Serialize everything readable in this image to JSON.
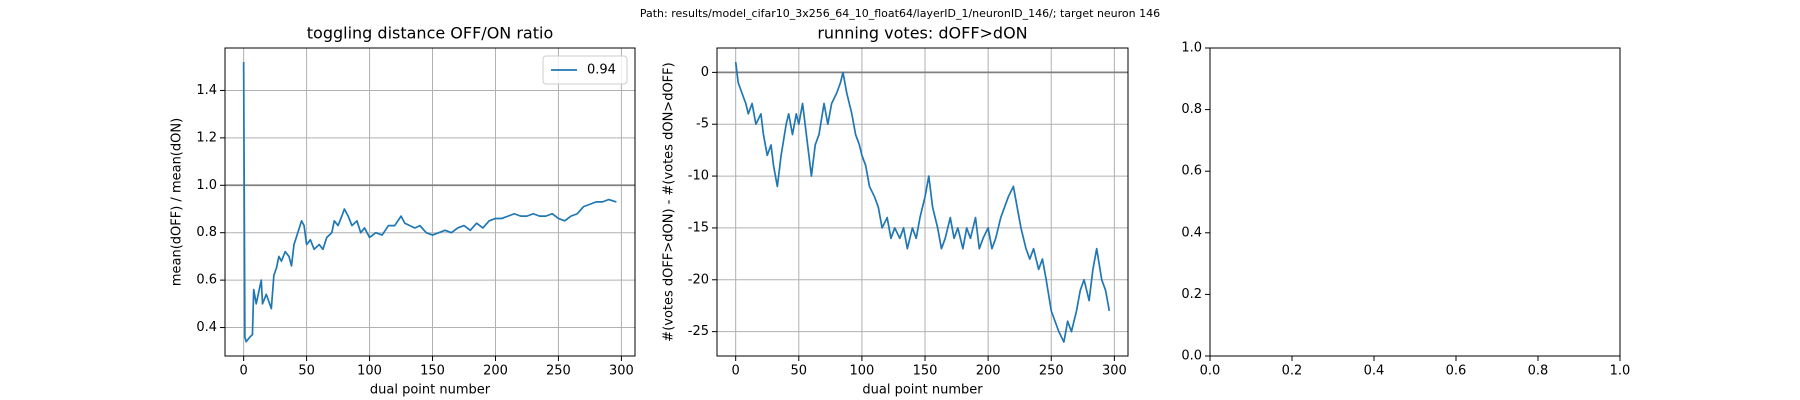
{
  "title": "Path: results/model_cifar10_3x256_64_10_float64/layerID_1/neuronID_146/; target neuron 146",
  "chart_data": [
    {
      "type": "line",
      "title": "toggling distance OFF/ON ratio",
      "xlabel": "dual point number",
      "ylabel": "mean(dOFF) / mean(dON)",
      "x": [
        0,
        1,
        2,
        5,
        7,
        8,
        10,
        12,
        14,
        15,
        18,
        22,
        24,
        26,
        28,
        30,
        33,
        36,
        38,
        40,
        43,
        46,
        48,
        50,
        53,
        56,
        60,
        63,
        66,
        70,
        72,
        75,
        78,
        80,
        83,
        86,
        90,
        93,
        96,
        100,
        105,
        110,
        115,
        120,
        125,
        128,
        132,
        136,
        140,
        145,
        150,
        155,
        160,
        165,
        170,
        175,
        180,
        185,
        190,
        195,
        200,
        205,
        210,
        215,
        220,
        225,
        230,
        235,
        240,
        245,
        250,
        255,
        260,
        265,
        270,
        275,
        280,
        285,
        290,
        296
      ],
      "series": [
        {
          "name": "0.94",
          "color": "#1f77b4",
          "values": [
            1.52,
            0.36,
            0.34,
            0.36,
            0.37,
            0.56,
            0.5,
            0.55,
            0.6,
            0.5,
            0.54,
            0.48,
            0.62,
            0.65,
            0.7,
            0.68,
            0.72,
            0.7,
            0.66,
            0.75,
            0.8,
            0.85,
            0.83,
            0.75,
            0.77,
            0.73,
            0.75,
            0.73,
            0.78,
            0.8,
            0.85,
            0.83,
            0.87,
            0.9,
            0.87,
            0.83,
            0.85,
            0.8,
            0.82,
            0.78,
            0.8,
            0.79,
            0.83,
            0.83,
            0.87,
            0.84,
            0.83,
            0.82,
            0.83,
            0.8,
            0.79,
            0.8,
            0.81,
            0.8,
            0.82,
            0.83,
            0.81,
            0.84,
            0.82,
            0.85,
            0.86,
            0.86,
            0.87,
            0.88,
            0.87,
            0.87,
            0.88,
            0.87,
            0.87,
            0.88,
            0.86,
            0.85,
            0.87,
            0.88,
            0.91,
            0.92,
            0.93,
            0.93,
            0.94,
            0.93
          ]
        }
      ],
      "hline": 1,
      "hline_color": "#808080",
      "xlim": [
        -14.8,
        310.8
      ],
      "xticks": [
        0,
        50,
        100,
        150,
        200,
        250,
        300
      ],
      "ylim": [
        0.28,
        1.579
      ],
      "yticks": [
        0.4,
        0.6,
        0.8,
        {
          "value": 1.0,
          "label": "1.0"
        },
        1.2,
        1.4
      ],
      "grid": true,
      "legend": "upper right"
    },
    {
      "type": "line",
      "title": "running votes: dOFF>dON",
      "xlabel": "dual point number",
      "ylabel": "#(votes dOFF>dON) - #(votes dON>dOFF)",
      "x": [
        0,
        2,
        5,
        8,
        10,
        13,
        16,
        20,
        22,
        25,
        28,
        30,
        33,
        36,
        40,
        42,
        45,
        48,
        50,
        53,
        56,
        58,
        60,
        63,
        66,
        70,
        73,
        76,
        80,
        83,
        85,
        88,
        92,
        95,
        98,
        100,
        103,
        106,
        110,
        113,
        116,
        120,
        123,
        126,
        130,
        133,
        136,
        140,
        143,
        146,
        150,
        153,
        156,
        160,
        163,
        166,
        170,
        173,
        176,
        180,
        183,
        186,
        190,
        193,
        196,
        200,
        203,
        206,
        210,
        213,
        216,
        220,
        223,
        226,
        230,
        233,
        236,
        240,
        243,
        246,
        250,
        253,
        256,
        260,
        263,
        266,
        270,
        273,
        276,
        280,
        283,
        286,
        290,
        293,
        296
      ],
      "series": [
        {
          "color": "#1f77b4",
          "values": [
            1,
            -1,
            -2,
            -3,
            -4,
            -3,
            -5,
            -4,
            -6,
            -8,
            -7,
            -9,
            -11,
            -8,
            -5,
            -4,
            -6,
            -4,
            -5,
            -3,
            -6,
            -8,
            -10,
            -7,
            -6,
            -3,
            -5,
            -3,
            -2,
            -1,
            0,
            -2,
            -4,
            -6,
            -7,
            -8,
            -9,
            -11,
            -12,
            -13,
            -15,
            -14,
            -16,
            -15,
            -16,
            -15,
            -17,
            -15,
            -16,
            -14,
            -12,
            -10,
            -13,
            -15,
            -17,
            -16,
            -14,
            -16,
            -15,
            -17,
            -15,
            -16,
            -14,
            -17,
            -16,
            -15,
            -17,
            -16,
            -14,
            -13,
            -12,
            -11,
            -13,
            -15,
            -17,
            -18,
            -17,
            -19,
            -18,
            -20,
            -23,
            -24,
            -25,
            -26,
            -24,
            -25,
            -23,
            -21,
            -20,
            -22,
            -19,
            -17,
            -20,
            -21,
            -23
          ]
        }
      ],
      "hline": 0,
      "hline_color": "#808080",
      "xlim": [
        -14.8,
        310.8
      ],
      "xticks": [
        0,
        50,
        100,
        150,
        200,
        250,
        300
      ],
      "ylim": [
        -27.35,
        2.35
      ],
      "yticks": [
        -25,
        -20,
        -15,
        -10,
        -5,
        0
      ],
      "grid": true
    },
    {
      "type": "line",
      "xlim": [
        0,
        1
      ],
      "xticks": [
        {
          "value": 0,
          "label": "0.0"
        },
        0.2,
        0.4,
        0.6,
        0.8,
        {
          "value": 1,
          "label": "1.0"
        }
      ],
      "ylim": [
        0,
        1
      ],
      "yticks": [
        {
          "value": 0,
          "label": "0.0"
        },
        0.2,
        0.4,
        0.6,
        0.8,
        {
          "value": 1,
          "label": "1.0"
        }
      ],
      "grid": false
    }
  ]
}
